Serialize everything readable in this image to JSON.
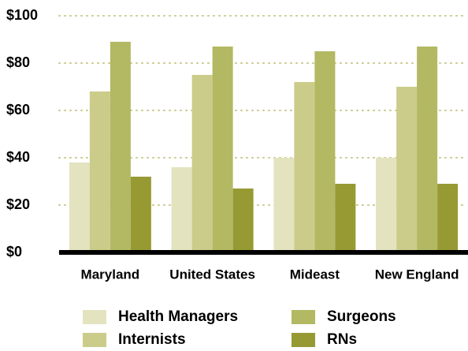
{
  "chart_data": {
    "type": "bar",
    "categories": [
      "Maryland",
      "United States",
      "Mideast",
      "New England"
    ],
    "series": [
      {
        "name": "Health Managers",
        "color": "#e3e3bf",
        "values": [
          38,
          36,
          40,
          40
        ]
      },
      {
        "name": "Internists",
        "color": "#cccc8a",
        "values": [
          68,
          75,
          72,
          70
        ]
      },
      {
        "name": "Surgeons",
        "color": "#b3b862",
        "values": [
          89,
          87,
          85,
          87
        ]
      },
      {
        "name": "RNs",
        "color": "#979a33",
        "values": [
          32,
          27,
          29,
          29
        ]
      }
    ],
    "ylim": [
      0,
      100
    ],
    "yticks": [
      {
        "value": 0,
        "label": "$0"
      },
      {
        "value": 20,
        "label": "$20"
      },
      {
        "value": 40,
        "label": "$40"
      },
      {
        "value": 60,
        "label": "$60"
      },
      {
        "value": 80,
        "label": "$80"
      },
      {
        "value": 100,
        "label": "$100"
      }
    ],
    "grid": true,
    "legend": "bottom"
  }
}
